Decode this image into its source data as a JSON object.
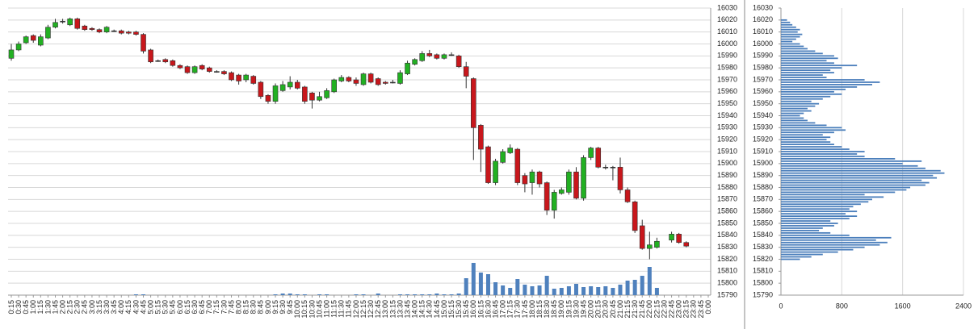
{
  "chart_data": [
    {
      "type": "candlestick",
      "categories": [
        "0:15",
        "0:30",
        "0:45",
        "1:00",
        "1:15",
        "1:30",
        "1:45",
        "2:00",
        "2:15",
        "2:30",
        "2:45",
        "3:00",
        "3:15",
        "3:30",
        "3:45",
        "4:00",
        "4:15",
        "4:30",
        "4:45",
        "5:00",
        "5:15",
        "5:30",
        "5:45",
        "6:00",
        "6:15",
        "6:30",
        "6:45",
        "7:00",
        "7:15",
        "7:30",
        "7:45",
        "8:00",
        "8:15",
        "8:30",
        "8:45",
        "9:00",
        "9:15",
        "9:30",
        "9:45",
        "10:00",
        "10:15",
        "10:30",
        "10:45",
        "11:00",
        "11:15",
        "11:30",
        "11:45",
        "12:00",
        "12:15",
        "12:30",
        "12:45",
        "13:00",
        "13:15",
        "13:30",
        "13:45",
        "14:00",
        "14:15",
        "14:30",
        "14:45",
        "15:00",
        "15:15",
        "15:30",
        "15:45",
        "16:00",
        "16:15",
        "16:30",
        "16:45",
        "17:00",
        "17:15",
        "17:30",
        "17:45",
        "18:00",
        "18:15",
        "18:30",
        "18:45",
        "19:00",
        "19:15",
        "19:30",
        "19:45",
        "20:00",
        "20:15",
        "20:30",
        "20:45",
        "21:00",
        "21:15",
        "21:30",
        "21:45",
        "22:00",
        "22:15",
        "22:30",
        "22:45",
        "23:00",
        "23:15",
        "23:30",
        "23:45",
        "0:00"
      ],
      "open": [
        15988,
        15995,
        16001,
        16007,
        15999,
        16005,
        16014,
        16019,
        16016,
        16021,
        16015,
        16013,
        16012,
        16010,
        16011,
        16011,
        16010,
        16010,
        16008,
        15995,
        15986,
        15987,
        15986,
        15982,
        15981,
        15976,
        15982,
        15980,
        15977,
        15977,
        15976,
        15974,
        15970,
        15973,
        15968,
        15957,
        15952,
        15961,
        15964,
        15968,
        15964,
        15959,
        15953,
        15955,
        15960,
        15969,
        15972,
        15970,
        15966,
        15975,
        15971,
        15968,
        15968,
        15967,
        15975,
        15983,
        15986,
        15992,
        15991,
        15988,
        15991,
        15990,
        15981,
        15971,
        15932,
        15914,
        15884,
        15901,
        15909,
        15912,
        15890,
        15884,
        15893,
        15884,
        15861,
        15875,
        15876,
        15893,
        15871,
        15905,
        15913,
        15897,
        15897,
        15897,
        15878,
        15868,
        15848,
        15829,
        15830,
        null,
        15836,
        15841,
        15834,
        null,
        null,
        null
      ],
      "high": [
        16000,
        16002,
        16007,
        16008,
        16008,
        16016,
        16021,
        16021,
        16022,
        16022,
        16016,
        16014,
        16013,
        16015,
        16012,
        16012,
        16011,
        16011,
        16009,
        15996,
        15987,
        15988,
        15987,
        15983,
        15982,
        15982,
        15983,
        15981,
        15978,
        15978,
        15977,
        15975,
        15975,
        15974,
        15969,
        15958,
        15967,
        15969,
        15973,
        15970,
        15965,
        15960,
        15960,
        15963,
        15971,
        15974,
        15973,
        15972,
        15976,
        15976,
        15972,
        15969,
        15970,
        15978,
        15986,
        15988,
        15994,
        15995,
        15992,
        15992,
        15993,
        15991,
        15985,
        15972,
        15933,
        15915,
        15904,
        15912,
        15916,
        15913,
        15892,
        15895,
        15894,
        15885,
        15878,
        15880,
        15895,
        15897,
        15907,
        15914,
        15914,
        15899,
        15898,
        15905,
        15880,
        15869,
        15853,
        15843,
        15838,
        null,
        15843,
        15842,
        15835,
        null,
        null,
        null
      ],
      "low": [
        15986,
        15994,
        16000,
        16001,
        15998,
        16004,
        16013,
        16017,
        16015,
        16012,
        16011,
        16011,
        16009,
        16009,
        16010,
        16008,
        16008,
        16007,
        15992,
        15984,
        15985,
        15984,
        15981,
        15979,
        15975,
        15975,
        15978,
        15976,
        15976,
        15974,
        15969,
        15966,
        15968,
        15966,
        15954,
        15950,
        15950,
        15960,
        15962,
        15962,
        15950,
        15946,
        15952,
        15954,
        15959,
        15968,
        15968,
        15965,
        15965,
        15967,
        15965,
        15966,
        15967,
        15966,
        15974,
        15982,
        15985,
        15989,
        15987,
        15987,
        15990,
        15980,
        15963,
        15903,
        15893,
        15883,
        15882,
        15900,
        15908,
        15882,
        15876,
        15874,
        15880,
        15857,
        15854,
        15874,
        15874,
        15870,
        15869,
        15903,
        15896,
        15895,
        15886,
        15875,
        15867,
        15842,
        15828,
        15820,
        15829,
        null,
        15834,
        15833,
        15830,
        null,
        null,
        null
      ],
      "close": [
        15995,
        16000,
        16006,
        16003,
        16006,
        16014,
        16018,
        16019,
        16021,
        16013,
        16012,
        16012,
        16010,
        16014,
        16011,
        16009,
        16009,
        16008,
        15994,
        15985,
        15986,
        15985,
        15982,
        15980,
        15976,
        15981,
        15979,
        15977,
        15977,
        15975,
        15970,
        15969,
        15974,
        15967,
        15956,
        15952,
        15965,
        15966,
        15968,
        15963,
        15952,
        15953,
        15956,
        15961,
        15970,
        15972,
        15969,
        15967,
        15975,
        15968,
        15966,
        15967,
        15968,
        15976,
        15984,
        15987,
        15992,
        15990,
        15988,
        15991,
        15991,
        15981,
        15973,
        15930,
        15912,
        15884,
        15902,
        15910,
        15913,
        15884,
        15883,
        15893,
        15883,
        15861,
        15876,
        15878,
        15893,
        15871,
        15905,
        15913,
        15897,
        15897,
        15897,
        15878,
        15868,
        15844,
        15829,
        15832,
        15835,
        null,
        15841,
        15834,
        15831,
        null,
        null,
        null
      ],
      "volume": [
        0,
        0,
        0,
        0,
        0,
        0,
        0,
        0,
        0,
        0,
        0,
        0,
        0,
        0,
        0,
        0,
        0,
        1,
        1,
        0,
        0,
        0,
        0,
        0,
        0,
        0,
        0,
        0,
        0,
        0,
        0,
        0,
        0,
        0,
        0,
        0,
        1,
        2,
        2,
        1,
        1,
        0,
        1,
        1,
        0,
        0,
        0,
        1,
        1,
        0,
        2,
        0,
        0,
        1,
        1,
        1,
        1,
        1,
        2,
        1,
        1,
        2,
        21,
        40,
        28,
        26,
        16,
        12,
        9,
        20,
        13,
        11,
        12,
        24,
        8,
        9,
        11,
        14,
        10,
        11,
        10,
        11,
        9,
        13,
        18,
        19,
        24,
        35,
        9,
        null,
        0,
        0,
        0,
        null,
        null,
        null
      ],
      "up_color": "#22b022",
      "down_color": "#c8171c",
      "volume_color": "#4f81bd",
      "ylim": [
        15790,
        16030
      ],
      "yticks": [
        15790,
        15800,
        15810,
        15820,
        15830,
        15840,
        15850,
        15860,
        15870,
        15880,
        15890,
        15900,
        15910,
        15920,
        15930,
        15940,
        15950,
        15960,
        15970,
        15980,
        15990,
        16000,
        16010,
        16020,
        16030
      ],
      "grid": true
    },
    {
      "type": "hbar",
      "y": [
        15820,
        15822,
        15824,
        15826,
        15828,
        15830,
        15832,
        15834,
        15836,
        15838,
        15840,
        15842,
        15844,
        15846,
        15848,
        15850,
        15852,
        15854,
        15856,
        15858,
        15860,
        15862,
        15864,
        15866,
        15868,
        15870,
        15872,
        15874,
        15876,
        15878,
        15880,
        15882,
        15884,
        15886,
        15888,
        15890,
        15892,
        15894,
        15896,
        15898,
        15900,
        15902,
        15904,
        15906,
        15908,
        15910,
        15912,
        15914,
        15916,
        15918,
        15920,
        15922,
        15924,
        15926,
        15928,
        15930,
        15932,
        15934,
        15936,
        15938,
        15940,
        15942,
        15944,
        15946,
        15948,
        15950,
        15952,
        15954,
        15956,
        15958,
        15960,
        15962,
        15964,
        15966,
        15968,
        15970,
        15972,
        15974,
        15976,
        15978,
        15980,
        15982,
        15984,
        15986,
        15988,
        15990,
        15992,
        15994,
        15996,
        15998,
        16000,
        16002,
        16004,
        16006,
        16008,
        16010,
        16012,
        16014,
        16016,
        16018,
        16020
      ],
      "values": [
        250,
        400,
        550,
        750,
        950,
        1100,
        1300,
        1400,
        1250,
        1450,
        900,
        650,
        500,
        550,
        700,
        750,
        650,
        900,
        1000,
        850,
        1000,
        900,
        950,
        1050,
        1150,
        1200,
        1350,
        1100,
        1500,
        1650,
        1700,
        1900,
        1950,
        1850,
        2050,
        2000,
        2150,
        2100,
        1900,
        1800,
        1600,
        1850,
        1500,
        1100,
        1000,
        1100,
        900,
        800,
        700,
        650,
        600,
        650,
        550,
        700,
        850,
        800,
        600,
        450,
        350,
        300,
        250,
        300,
        400,
        350,
        450,
        500,
        400,
        550,
        650,
        800,
        700,
        850,
        1000,
        1200,
        1300,
        1100,
        600,
        550,
        700,
        650,
        800,
        1000,
        700,
        600,
        750,
        700,
        550,
        450,
        350,
        300,
        250,
        150,
        200,
        250,
        280,
        220,
        250,
        200,
        150,
        120,
        80
      ],
      "color": "#4a7ebb",
      "xlim": [
        0,
        2400
      ],
      "xticks": [
        0,
        800,
        1600,
        2400
      ],
      "ylim": [
        15790,
        16030
      ],
      "yticks": [
        15790,
        15800,
        15810,
        15820,
        15830,
        15840,
        15850,
        15860,
        15870,
        15880,
        15890,
        15900,
        15910,
        15920,
        15930,
        15940,
        15950,
        15960,
        15970,
        15980,
        15990,
        16000,
        16010,
        16020,
        16030
      ],
      "grid": true
    }
  ]
}
